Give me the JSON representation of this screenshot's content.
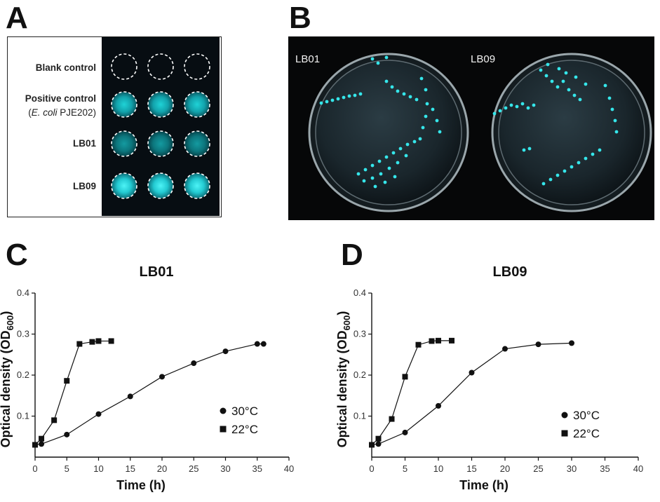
{
  "panels": {
    "a": {
      "letter": "A",
      "rows": [
        {
          "label": "Blank control",
          "sublabel": ""
        },
        {
          "label": "Positive control",
          "sublabel_italic": "E. coli",
          "sublabel": " PJE202)",
          "sublabel_prefix": "("
        },
        {
          "label": "LB01"
        },
        {
          "label": "LB09"
        }
      ]
    },
    "b": {
      "letter": "B",
      "plate_left_label": "LB01",
      "plate_right_label": "LB09"
    },
    "c": {
      "letter": "C",
      "title": "LB01"
    },
    "d": {
      "letter": "D",
      "title": "LB09"
    }
  },
  "colors": {
    "fluorescence": "#2ee0e6",
    "dark_background": "#070d12",
    "line": "#111111"
  },
  "chart_data": [
    {
      "type": "line",
      "title": "LB01",
      "xlabel": "Time (h)",
      "ylabel": "Optical density (OD600)",
      "xlim": [
        0,
        40
      ],
      "ylim": [
        0,
        0.4
      ],
      "xticks": [
        "0",
        "5",
        "10",
        "15",
        "20",
        "25",
        "30",
        "35",
        "40"
      ],
      "yticks": [
        "0.1",
        "0.2",
        "0.3",
        "0.4"
      ],
      "legend_position": "right-middle",
      "series": [
        {
          "name": "30°C",
          "marker": "circle",
          "x": [
            0,
            1,
            5,
            10,
            15,
            20,
            25,
            30,
            35,
            36
          ],
          "y": [
            0.03,
            0.032,
            0.055,
            0.105,
            0.148,
            0.196,
            0.229,
            0.258,
            0.276,
            0.276
          ]
        },
        {
          "name": "22°C",
          "marker": "square",
          "x": [
            0,
            1,
            3,
            5,
            7,
            9,
            10,
            12
          ],
          "y": [
            0.03,
            0.045,
            0.09,
            0.186,
            0.276,
            0.281,
            0.283,
            0.283
          ]
        }
      ]
    },
    {
      "type": "line",
      "title": "LB09",
      "xlabel": "Time (h)",
      "ylabel": "Optical density (OD600)",
      "xlim": [
        0,
        40
      ],
      "ylim": [
        0,
        0.4
      ],
      "xticks": [
        "0",
        "5",
        "10",
        "15",
        "20",
        "25",
        "30",
        "35",
        "40"
      ],
      "yticks": [
        "0.1",
        "0.2",
        "0.3",
        "0.4"
      ],
      "legend_position": "right-middle",
      "series": [
        {
          "name": "30°C",
          "marker": "circle",
          "x": [
            0,
            1,
            5,
            10,
            15,
            20,
            25,
            30
          ],
          "y": [
            0.03,
            0.032,
            0.06,
            0.125,
            0.206,
            0.264,
            0.275,
            0.278
          ]
        },
        {
          "name": "22°C",
          "marker": "square",
          "x": [
            0,
            1,
            3,
            5,
            7,
            9,
            10,
            12
          ],
          "y": [
            0.03,
            0.045,
            0.093,
            0.196,
            0.274,
            0.283,
            0.284,
            0.284
          ]
        }
      ]
    }
  ]
}
